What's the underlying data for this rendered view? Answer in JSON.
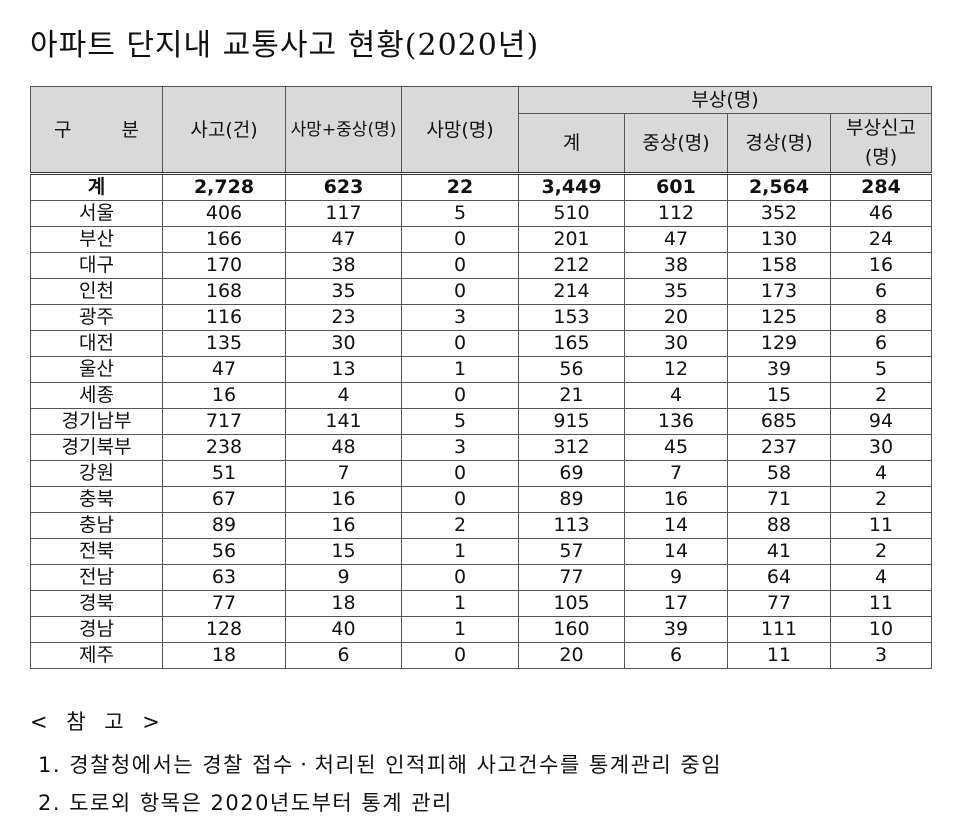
{
  "title": "아파트 단지내 교통사고 현황(2020년)",
  "table": {
    "headers": {
      "region": "구  분",
      "accidents": "사고(건)",
      "killed_serious": "사망+중상(명)",
      "deaths": "사망(명)",
      "injured_group": "부상(명)",
      "injured_total": "계",
      "serious": "중상(명)",
      "minor": "경상(명)",
      "reported": "부상신고(명)"
    },
    "rows": [
      [
        "계",
        "2,728",
        "623",
        "22",
        "3,449",
        "601",
        "2,564",
        "284"
      ],
      [
        "서울",
        "406",
        "117",
        "5",
        "510",
        "112",
        "352",
        "46"
      ],
      [
        "부산",
        "166",
        "47",
        "0",
        "201",
        "47",
        "130",
        "24"
      ],
      [
        "대구",
        "170",
        "38",
        "0",
        "212",
        "38",
        "158",
        "16"
      ],
      [
        "인천",
        "168",
        "35",
        "0",
        "214",
        "35",
        "173",
        "6"
      ],
      [
        "광주",
        "116",
        "23",
        "3",
        "153",
        "20",
        "125",
        "8"
      ],
      [
        "대전",
        "135",
        "30",
        "0",
        "165",
        "30",
        "129",
        "6"
      ],
      [
        "울산",
        "47",
        "13",
        "1",
        "56",
        "12",
        "39",
        "5"
      ],
      [
        "세종",
        "16",
        "4",
        "0",
        "21",
        "4",
        "15",
        "2"
      ],
      [
        "경기남부",
        "717",
        "141",
        "5",
        "915",
        "136",
        "685",
        "94"
      ],
      [
        "경기북부",
        "238",
        "48",
        "3",
        "312",
        "45",
        "237",
        "30"
      ],
      [
        "강원",
        "51",
        "7",
        "0",
        "69",
        "7",
        "58",
        "4"
      ],
      [
        "충북",
        "67",
        "16",
        "0",
        "89",
        "16",
        "71",
        "2"
      ],
      [
        "충남",
        "89",
        "16",
        "2",
        "113",
        "14",
        "88",
        "11"
      ],
      [
        "전북",
        "56",
        "15",
        "1",
        "57",
        "14",
        "41",
        "2"
      ],
      [
        "전남",
        "63",
        "9",
        "0",
        "77",
        "9",
        "64",
        "4"
      ],
      [
        "경북",
        "77",
        "18",
        "1",
        "105",
        "17",
        "77",
        "11"
      ],
      [
        "경남",
        "128",
        "40",
        "1",
        "160",
        "39",
        "111",
        "10"
      ],
      [
        "제주",
        "18",
        "6",
        "0",
        "20",
        "6",
        "11",
        "3"
      ]
    ]
  },
  "notes": {
    "heading": "< 참 고 >",
    "items": [
      "1. 경찰청에서는 경찰 접수ㆍ처리된 인적피해 사고건수를 통계관리 중임",
      "2. 도로외 항목은 2020년도부터 통계 관리"
    ]
  }
}
